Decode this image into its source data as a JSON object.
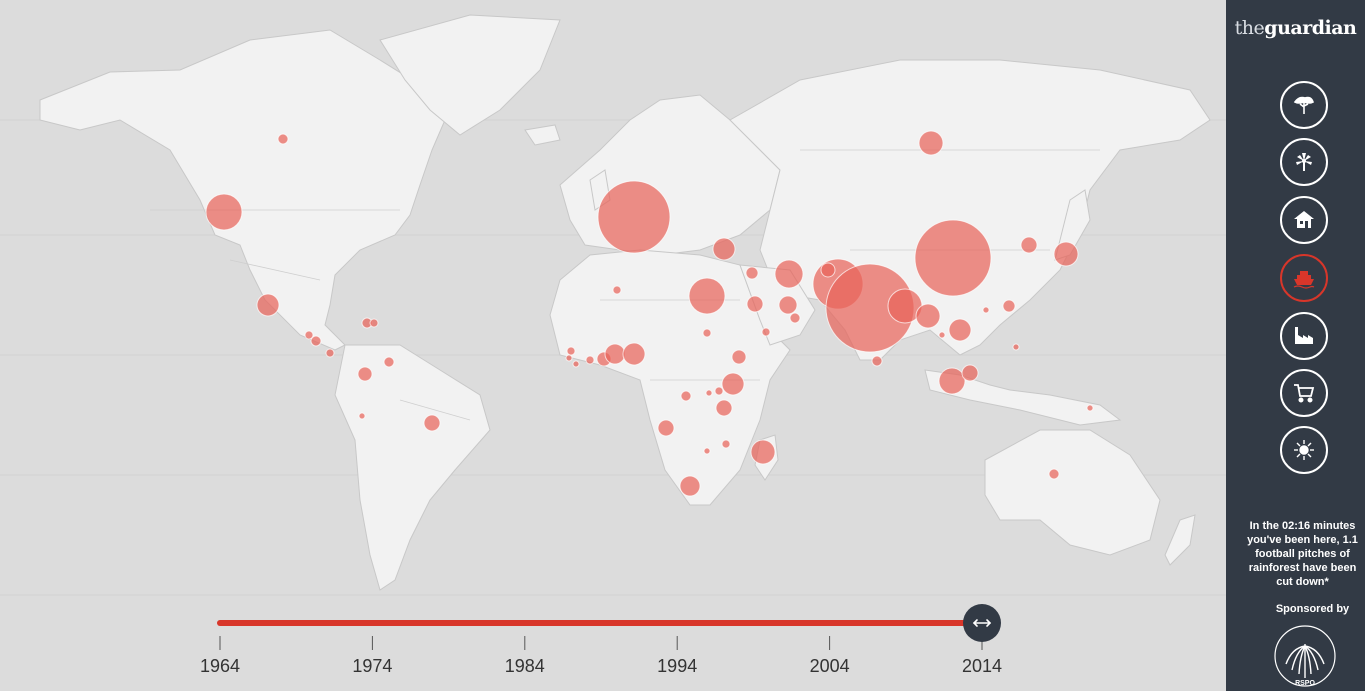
{
  "sidebar": {
    "logo_the": "the",
    "logo_word": "guardian",
    "nav": [
      {
        "icon": "tree-icon",
        "label": ""
      },
      {
        "icon": "palm-tree-icon",
        "label": ""
      },
      {
        "icon": "house-icon",
        "label": ""
      },
      {
        "icon": "ship-icon",
        "label": ""
      },
      {
        "icon": "factory-icon",
        "label": ""
      },
      {
        "icon": "shopping-cart-icon",
        "label": ""
      },
      {
        "icon": "sun-icon",
        "label": ""
      }
    ],
    "active_nav": 3,
    "counter_text": "In the 02:16 minutes you've been here, 1.1 football pitches of rainforest have been cut down*",
    "sponsored_label": "Sponsored by",
    "sponsor_logo_text": "CERTIFIED SUSTAINABLE PALM OIL RSPO"
  },
  "timeline": {
    "ticks": [
      "1964",
      "1974",
      "1984",
      "1994",
      "2004",
      "2014"
    ],
    "current_year": "2014",
    "progress": 1.0,
    "handle_icon": "double-arrow-icon"
  },
  "colors": {
    "sidebar_bg": "#323a45",
    "ocean": "#dcdcdc",
    "land": "#f2f2f2",
    "bubble": "#e8645a",
    "timeline": "#d8362a"
  }
}
